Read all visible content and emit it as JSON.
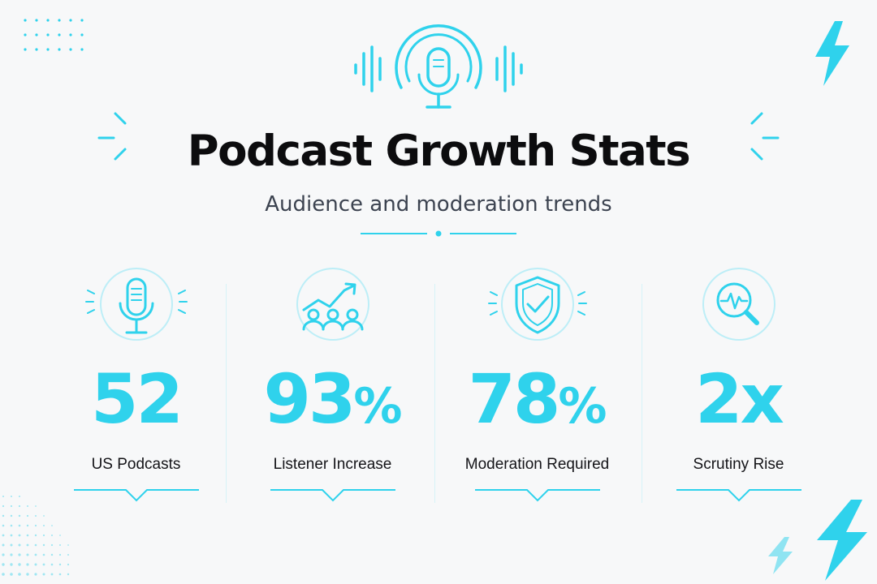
{
  "title": "Podcast Growth Stats",
  "subtitle": "Audience and moderation trends",
  "colors": {
    "accent": "#2fd2ec",
    "title": "#0c0c0e",
    "subtitle": "#3c4350"
  },
  "stats": [
    {
      "value": "52",
      "suffix": "",
      "label": "US Podcasts",
      "icon": "microphone-icon"
    },
    {
      "value": "93",
      "suffix": "%",
      "label": "Listener Increase",
      "icon": "audience-growth-icon"
    },
    {
      "value": "78",
      "suffix": "%",
      "label": "Moderation Required",
      "icon": "shield-check-icon"
    },
    {
      "value": "2x",
      "suffix": "",
      "label": "Scrutiny Rise",
      "icon": "magnifier-pulse-icon"
    }
  ]
}
